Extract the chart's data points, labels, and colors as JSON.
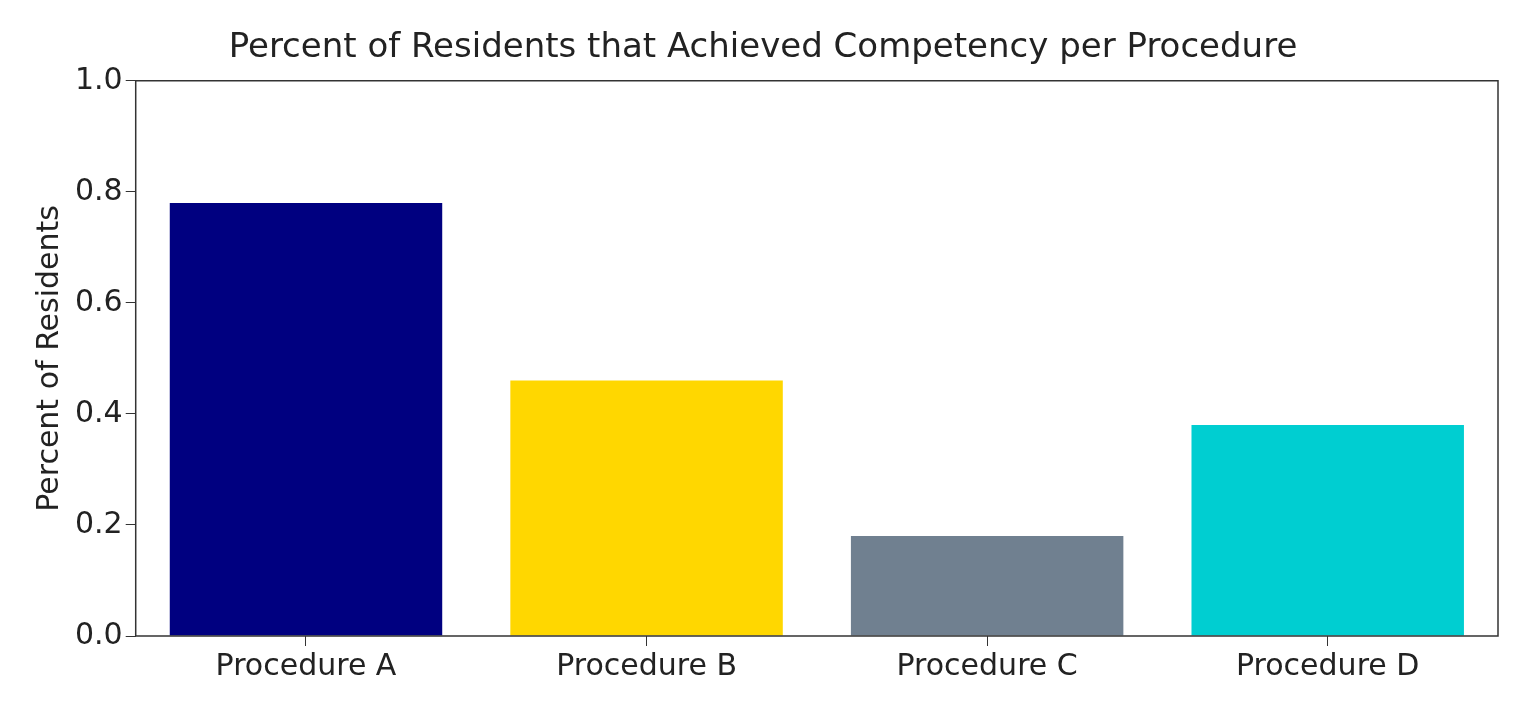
{
  "chart_data": {
    "type": "bar",
    "title": "Percent of Residents that Achieved Competency per Procedure",
    "ylabel": "Percent of Residents",
    "categories": [
      "Procedure A",
      "Procedure B",
      "Procedure C",
      "Procedure D"
    ],
    "values": [
      0.78,
      0.46,
      0.18,
      0.38
    ],
    "colors": [
      "#000080",
      "#ffd700",
      "#708090",
      "#00ced1"
    ],
    "ylim": [
      0,
      1.0
    ],
    "yticks": [
      {
        "value": 0,
        "label": "0.0"
      },
      {
        "value": 0.2,
        "label": "0.2"
      },
      {
        "value": 0.4,
        "label": "0.4"
      },
      {
        "value": 0.6,
        "label": "0.6"
      },
      {
        "value": 0.8,
        "label": "0.8"
      },
      {
        "value": 1.0,
        "label": "1.0"
      }
    ],
    "legend": false,
    "grid": false
  }
}
